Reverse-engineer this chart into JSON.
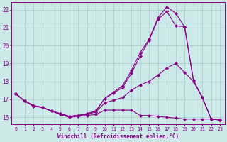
{
  "xlabel": "Windchill (Refroidissement éolien,°C)",
  "background_color": "#cce8e8",
  "line_color": "#880088",
  "grid_color": "#aacccc",
  "xlim": [
    -0.5,
    23.5
  ],
  "ylim": [
    15.6,
    22.4
  ],
  "xticks": [
    0,
    1,
    2,
    3,
    4,
    5,
    6,
    7,
    8,
    9,
    10,
    11,
    12,
    13,
    14,
    15,
    16,
    17,
    18,
    19,
    20,
    21,
    22,
    23
  ],
  "yticks": [
    16,
    17,
    18,
    19,
    20,
    21,
    22
  ],
  "lines": [
    {
      "x": [
        0,
        1,
        2,
        3,
        4,
        5,
        6,
        7,
        8,
        9,
        10,
        11,
        12,
        13,
        14,
        15,
        16,
        17,
        18,
        19,
        20,
        21,
        22,
        23
      ],
      "y": [
        17.3,
        16.9,
        16.6,
        16.55,
        16.35,
        16.15,
        16.0,
        16.05,
        16.1,
        16.15,
        16.4,
        16.4,
        16.4,
        16.4,
        16.1,
        16.1,
        16.05,
        16.0,
        15.95,
        15.9,
        15.9,
        15.9,
        15.9,
        15.85
      ]
    },
    {
      "x": [
        0,
        1,
        2,
        3,
        4,
        5,
        6,
        7,
        8,
        9,
        10,
        11,
        12,
        13,
        14,
        15,
        16,
        17,
        18,
        19,
        20,
        21,
        22,
        23
      ],
      "y": [
        17.3,
        16.9,
        16.65,
        16.55,
        16.35,
        16.2,
        16.05,
        16.1,
        16.15,
        16.3,
        16.8,
        16.95,
        17.1,
        17.5,
        17.8,
        18.0,
        18.35,
        18.75,
        19.0,
        18.5,
        18.0,
        17.1,
        15.9,
        15.85
      ]
    },
    {
      "x": [
        0,
        1,
        2,
        3,
        4,
        5,
        6,
        7,
        8,
        9,
        10,
        11,
        12,
        13,
        14,
        15,
        16,
        17,
        18,
        19,
        20,
        21,
        22,
        23
      ],
      "y": [
        17.3,
        16.9,
        16.65,
        16.55,
        16.35,
        16.2,
        16.05,
        16.1,
        16.2,
        16.35,
        17.05,
        17.4,
        17.75,
        18.6,
        19.6,
        20.35,
        21.55,
        22.15,
        21.8,
        21.05,
        18.05,
        17.1,
        15.9,
        15.85
      ]
    },
    {
      "x": [
        0,
        1,
        2,
        3,
        4,
        5,
        6,
        7,
        8,
        9,
        10,
        11,
        12,
        13,
        14,
        15,
        16,
        17,
        18,
        19,
        20,
        21,
        22,
        23
      ],
      "y": [
        17.3,
        16.9,
        16.65,
        16.55,
        16.35,
        16.2,
        16.05,
        16.1,
        16.2,
        16.35,
        17.05,
        17.35,
        17.65,
        18.45,
        19.4,
        20.3,
        21.45,
        21.9,
        21.1,
        21.05,
        18.05,
        17.1,
        15.9,
        15.85
      ]
    }
  ]
}
